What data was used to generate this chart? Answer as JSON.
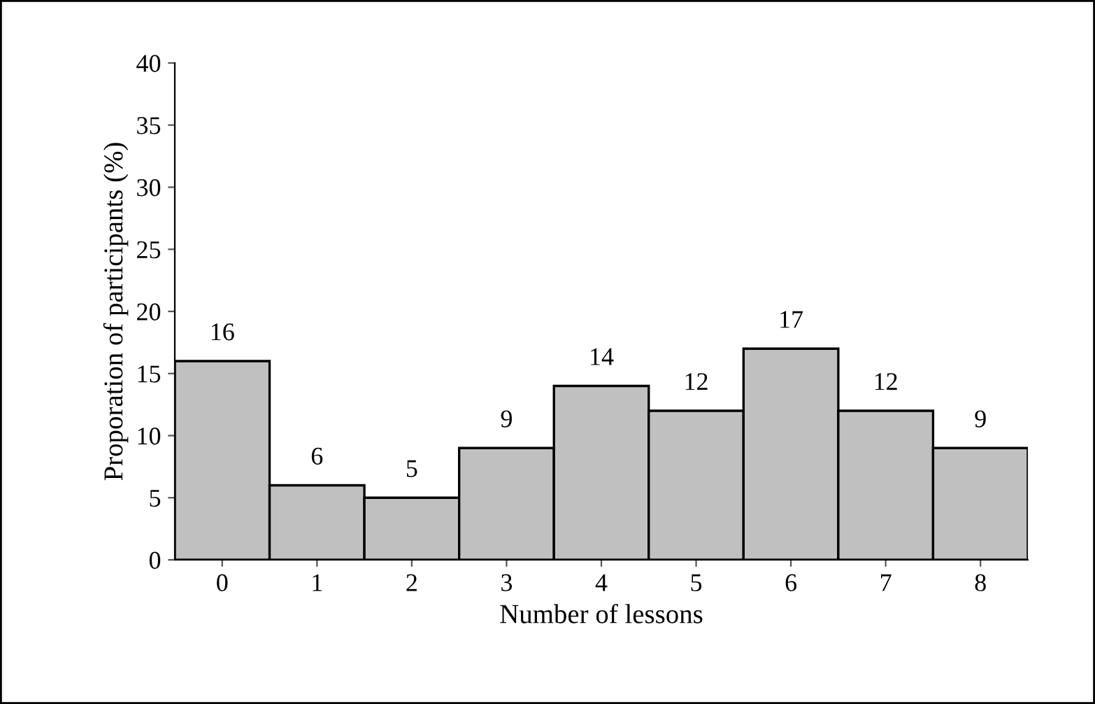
{
  "chart_data": {
    "type": "bar",
    "xlabel": "Number of lessons",
    "ylabel": "Proporation of participants (%)",
    "categories": [
      "0",
      "1",
      "2",
      "3",
      "4",
      "5",
      "6",
      "7",
      "8"
    ],
    "values": [
      16,
      6,
      5,
      9,
      14,
      12,
      17,
      12,
      9
    ],
    "color": "#c0c0c0",
    "data_labels": true,
    "ylim": [
      0,
      40
    ],
    "yticks": [
      0,
      5,
      10,
      15,
      20,
      25,
      30,
      35,
      40
    ],
    "grid": false
  }
}
